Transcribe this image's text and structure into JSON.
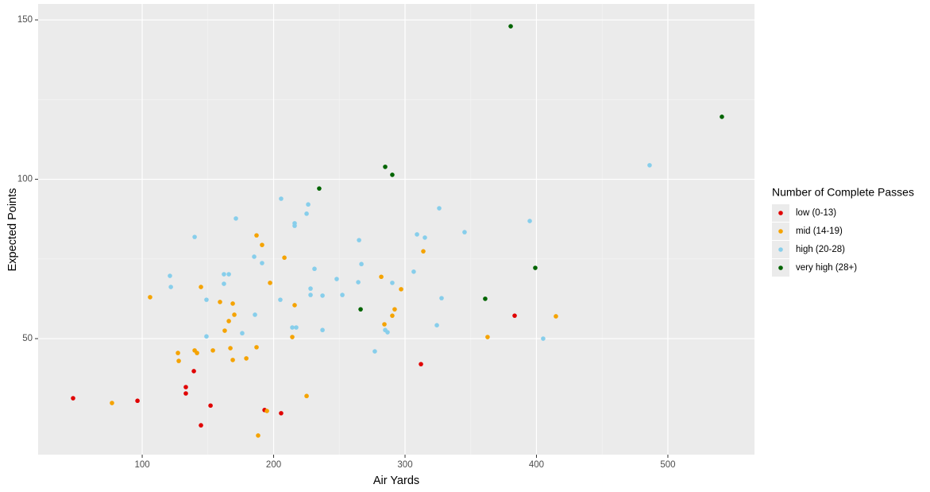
{
  "chart_data": {
    "type": "scatter",
    "x_label": "Air Yards",
    "y_label": "Expected Points",
    "legend_title": "Number of Complete Passes",
    "legend_position": "right",
    "grid": true,
    "xlim": [
      20.8,
      565.9
    ],
    "ylim": [
      13.6,
      155.0
    ],
    "xticks": [
      100,
      200,
      300,
      400,
      500
    ],
    "yticks": [
      50,
      100,
      150
    ],
    "series": [
      {
        "name": "low (0-13)",
        "color": "#e00000",
        "x": [
          47.4,
          96.4,
          139.3,
          133.2,
          133.2,
          152.0,
          144.7,
          193.1,
          205.7,
          312.1,
          383.4
        ],
        "values": [
          31.3,
          30.5,
          39.8,
          34.8,
          32.8,
          29.0,
          22.8,
          27.6,
          26.6,
          42.0,
          57.2
        ]
      },
      {
        "name": "mid (14-19)",
        "color": "#f5a300",
        "x": [
          77.0,
          106.0,
          127.2,
          127.8,
          139.9,
          141.7,
          144.7,
          153.8,
          159.2,
          162.8,
          165.9,
          168.9,
          170.1,
          167.1,
          168.9,
          179.2,
          187.0,
          191.2,
          187.0,
          188.2,
          194.9,
          197.3,
          208.2,
          216.0,
          214.2,
          225.1,
          281.9,
          284.3,
          290.3,
          292.1,
          297.0,
          313.9,
          362.8,
          414.8
        ],
        "values": [
          29.8,
          63.0,
          45.5,
          43.0,
          46.3,
          45.5,
          66.2,
          46.3,
          61.5,
          52.5,
          55.5,
          61.0,
          57.5,
          47.0,
          43.3,
          43.8,
          82.4,
          79.4,
          47.3,
          19.6,
          27.3,
          67.5,
          75.4,
          60.5,
          50.5,
          32.0,
          69.4,
          54.5,
          57.2,
          59.2,
          65.5,
          77.4,
          50.5,
          57.0
        ]
      },
      {
        "name": "high (20-28)",
        "color": "#87ceeb",
        "x": [
          121.1,
          121.8,
          139.9,
          148.9,
          148.9,
          162.2,
          162.2,
          165.9,
          171.3,
          176.1,
          185.2,
          185.8,
          191.2,
          205.7,
          205.1,
          216.0,
          216.0,
          214.2,
          217.2,
          226.3,
          225.1,
          228.1,
          228.1,
          231.1,
          237.2,
          237.2,
          248.0,
          252.3,
          265.0,
          266.8,
          264.4,
          277.0,
          284.9,
          286.7,
          290.3,
          306.6,
          309.1,
          315.1,
          326.0,
          324.2,
          327.8,
          345.3,
          394.9,
          405.1,
          486.1
        ],
        "values": [
          69.7,
          66.2,
          81.9,
          62.2,
          50.7,
          67.2,
          70.2,
          70.2,
          87.7,
          51.7,
          75.7,
          57.5,
          73.7,
          93.9,
          62.2,
          86.2,
          85.4,
          53.5,
          53.5,
          92.1,
          89.2,
          65.7,
          63.7,
          71.9,
          63.5,
          52.7,
          68.7,
          63.7,
          80.9,
          73.4,
          67.7,
          46.0,
          52.7,
          52.0,
          67.5,
          71.0,
          82.7,
          81.7,
          90.9,
          54.2,
          62.7,
          83.4,
          86.9,
          50.0,
          104.4
        ]
      },
      {
        "name": "very high (28+)",
        "color": "#006400",
        "x": [
          380.4,
          541.1,
          284.9,
          290.3,
          234.7,
          266.2,
          361.0,
          399.1
        ],
        "values": [
          148.0,
          119.6,
          103.9,
          101.4,
          97.1,
          59.2,
          62.5,
          72.2
        ]
      }
    ]
  }
}
